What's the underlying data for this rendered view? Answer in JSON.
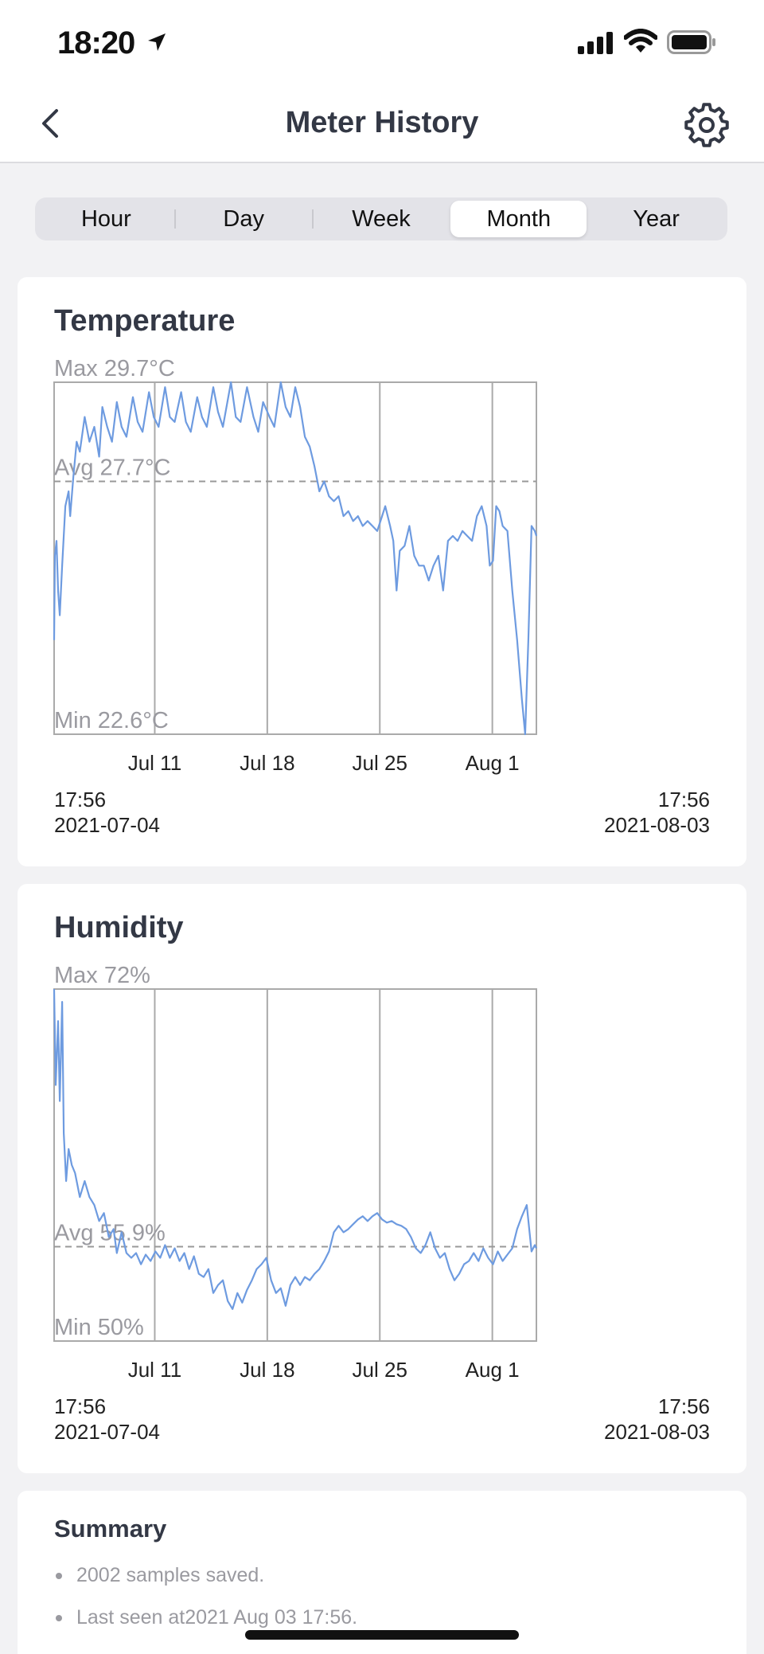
{
  "status_bar": {
    "time": "18:20"
  },
  "nav": {
    "title": "Meter History"
  },
  "tabs": [
    {
      "label": "Hour",
      "active": false
    },
    {
      "label": "Day",
      "active": false
    },
    {
      "label": "Week",
      "active": false
    },
    {
      "label": "Month",
      "active": true
    },
    {
      "label": "Year",
      "active": false
    }
  ],
  "temperature": {
    "title": "Temperature",
    "max_label": "Max 29.7°C",
    "avg_label": "Avg 27.7°C",
    "min_label": "Min 22.6°C",
    "start_time": "17:56",
    "start_date": "2021-07-04",
    "end_time": "17:56",
    "end_date": "2021-08-03"
  },
  "humidity": {
    "title": "Humidity",
    "max_label": "Max 72%",
    "avg_label": "Avg 55.9%",
    "min_label": "Min 50%",
    "start_time": "17:56",
    "start_date": "2021-07-04",
    "end_time": "17:56",
    "end_date": "2021-08-03"
  },
  "summary": {
    "title": "Summary",
    "items": [
      "2002 samples saved.",
      "Last seen at2021 Aug 03 17:56."
    ]
  },
  "chart_data": [
    {
      "type": "line",
      "title": "Temperature",
      "unit": "°C",
      "x_tick_labels": [
        "Jul 11",
        "Jul 18",
        "Jul 25",
        "Aug 1"
      ],
      "x_ticks_days": [
        6.26,
        13.26,
        20.26,
        27.26
      ],
      "xlim_days": [
        0,
        30
      ],
      "ylim": [
        22.6,
        29.7
      ],
      "avg": 27.7,
      "grid": "vertical at day ticks",
      "color": "#6e9be0",
      "series": [
        {
          "points": [
            [
              0,
              24.5
            ],
            [
              0.05,
              26.2
            ],
            [
              0.15,
              26.5
            ],
            [
              0.25,
              25.5
            ],
            [
              0.35,
              25.0
            ],
            [
              0.5,
              26.0
            ],
            [
              0.7,
              27.2
            ],
            [
              0.9,
              27.5
            ],
            [
              1.0,
              27.0
            ],
            [
              1.2,
              27.8
            ],
            [
              1.4,
              28.5
            ],
            [
              1.6,
              28.3
            ],
            [
              1.9,
              29.0
            ],
            [
              2.2,
              28.5
            ],
            [
              2.5,
              28.8
            ],
            [
              2.8,
              28.2
            ],
            [
              3.0,
              29.2
            ],
            [
              3.3,
              28.8
            ],
            [
              3.6,
              28.5
            ],
            [
              3.9,
              29.3
            ],
            [
              4.2,
              28.8
            ],
            [
              4.5,
              28.6
            ],
            [
              4.9,
              29.4
            ],
            [
              5.2,
              28.9
            ],
            [
              5.5,
              28.7
            ],
            [
              5.9,
              29.5
            ],
            [
              6.2,
              29.0
            ],
            [
              6.5,
              28.8
            ],
            [
              6.9,
              29.6
            ],
            [
              7.2,
              29.0
            ],
            [
              7.5,
              28.9
            ],
            [
              7.9,
              29.5
            ],
            [
              8.2,
              28.9
            ],
            [
              8.5,
              28.7
            ],
            [
              8.9,
              29.4
            ],
            [
              9.2,
              29.0
            ],
            [
              9.5,
              28.8
            ],
            [
              9.9,
              29.6
            ],
            [
              10.2,
              29.1
            ],
            [
              10.5,
              28.8
            ],
            [
              11.0,
              29.7
            ],
            [
              11.3,
              29.0
            ],
            [
              11.6,
              28.9
            ],
            [
              12.0,
              29.6
            ],
            [
              12.4,
              29.0
            ],
            [
              12.7,
              28.7
            ],
            [
              13.0,
              29.3
            ],
            [
              13.4,
              29.0
            ],
            [
              13.7,
              28.8
            ],
            [
              14.1,
              29.7
            ],
            [
              14.4,
              29.2
            ],
            [
              14.7,
              29.0
            ],
            [
              15.0,
              29.6
            ],
            [
              15.3,
              29.2
            ],
            [
              15.6,
              28.6
            ],
            [
              15.9,
              28.4
            ],
            [
              16.2,
              28.0
            ],
            [
              16.5,
              27.5
            ],
            [
              16.8,
              27.7
            ],
            [
              17.1,
              27.4
            ],
            [
              17.4,
              27.3
            ],
            [
              17.7,
              27.4
            ],
            [
              18.0,
              27.0
            ],
            [
              18.3,
              27.1
            ],
            [
              18.6,
              26.9
            ],
            [
              18.9,
              27.0
            ],
            [
              19.2,
              26.8
            ],
            [
              19.5,
              26.9
            ],
            [
              19.8,
              26.8
            ],
            [
              20.1,
              26.7
            ],
            [
              20.4,
              27.0
            ],
            [
              20.6,
              27.2
            ],
            [
              20.9,
              26.8
            ],
            [
              21.1,
              26.5
            ],
            [
              21.3,
              25.5
            ],
            [
              21.5,
              26.3
            ],
            [
              21.8,
              26.4
            ],
            [
              22.1,
              26.8
            ],
            [
              22.4,
              26.2
            ],
            [
              22.7,
              26.0
            ],
            [
              23.0,
              26.0
            ],
            [
              23.3,
              25.7
            ],
            [
              23.6,
              26.0
            ],
            [
              23.9,
              26.2
            ],
            [
              24.2,
              25.5
            ],
            [
              24.5,
              26.5
            ],
            [
              24.8,
              26.6
            ],
            [
              25.1,
              26.5
            ],
            [
              25.4,
              26.7
            ],
            [
              25.7,
              26.6
            ],
            [
              26.0,
              26.5
            ],
            [
              26.3,
              27.0
            ],
            [
              26.6,
              27.2
            ],
            [
              26.9,
              26.8
            ],
            [
              27.1,
              26.0
            ],
            [
              27.3,
              26.1
            ],
            [
              27.5,
              27.2
            ],
            [
              27.7,
              27.1
            ],
            [
              27.9,
              26.8
            ],
            [
              28.2,
              26.7
            ],
            [
              28.5,
              25.5
            ],
            [
              28.8,
              24.5
            ],
            [
              29.1,
              23.3
            ],
            [
              29.3,
              22.6
            ],
            [
              29.5,
              24.5
            ],
            [
              29.7,
              26.8
            ],
            [
              29.9,
              26.7
            ],
            [
              30.0,
              26.6
            ]
          ]
        }
      ]
    },
    {
      "type": "line",
      "title": "Humidity",
      "unit": "%",
      "x_tick_labels": [
        "Jul 11",
        "Jul 18",
        "Jul 25",
        "Aug 1"
      ],
      "x_ticks_days": [
        6.26,
        13.26,
        20.26,
        27.26
      ],
      "xlim_days": [
        0,
        30
      ],
      "ylim": [
        50,
        72
      ],
      "avg": 55.9,
      "grid": "vertical at day ticks",
      "color": "#6e9be0",
      "series": [
        {
          "points": [
            [
              0,
              72
            ],
            [
              0.1,
              66
            ],
            [
              0.25,
              70
            ],
            [
              0.35,
              65
            ],
            [
              0.5,
              71.2
            ],
            [
              0.6,
              63
            ],
            [
              0.75,
              60
            ],
            [
              0.9,
              62
            ],
            [
              1.1,
              61
            ],
            [
              1.3,
              60.5
            ],
            [
              1.6,
              59
            ],
            [
              1.9,
              60
            ],
            [
              2.2,
              59
            ],
            [
              2.5,
              58.5
            ],
            [
              2.8,
              57.5
            ],
            [
              3.1,
              58
            ],
            [
              3.4,
              56.5
            ],
            [
              3.7,
              57
            ],
            [
              3.9,
              55.5
            ],
            [
              4.2,
              56.8
            ],
            [
              4.5,
              55.5
            ],
            [
              4.8,
              55.2
            ],
            [
              5.1,
              55.5
            ],
            [
              5.4,
              54.8
            ],
            [
              5.7,
              55.4
            ],
            [
              6.0,
              55.0
            ],
            [
              6.3,
              55.6
            ],
            [
              6.6,
              55.2
            ],
            [
              6.9,
              56
            ],
            [
              7.2,
              55.2
            ],
            [
              7.5,
              55.8
            ],
            [
              7.8,
              55.0
            ],
            [
              8.1,
              55.5
            ],
            [
              8.4,
              54.5
            ],
            [
              8.7,
              55.3
            ],
            [
              9.0,
              54.2
            ],
            [
              9.3,
              54.0
            ],
            [
              9.6,
              54.5
            ],
            [
              9.9,
              53.0
            ],
            [
              10.2,
              53.5
            ],
            [
              10.5,
              53.8
            ],
            [
              10.8,
              52.5
            ],
            [
              11.1,
              52.0
            ],
            [
              11.4,
              53.0
            ],
            [
              11.7,
              52.4
            ],
            [
              12.0,
              53.2
            ],
            [
              12.3,
              53.8
            ],
            [
              12.6,
              54.5
            ],
            [
              12.9,
              54.8
            ],
            [
              13.2,
              55.2
            ],
            [
              13.5,
              53.8
            ],
            [
              13.8,
              53.0
            ],
            [
              14.1,
              53.3
            ],
            [
              14.4,
              52.2
            ],
            [
              14.7,
              53.5
            ],
            [
              15.0,
              54.0
            ],
            [
              15.3,
              53.5
            ],
            [
              15.6,
              54.0
            ],
            [
              15.9,
              53.8
            ],
            [
              16.2,
              54.2
            ],
            [
              16.5,
              54.5
            ],
            [
              16.8,
              55.0
            ],
            [
              17.1,
              55.6
            ],
            [
              17.4,
              56.8
            ],
            [
              17.7,
              57.2
            ],
            [
              18.0,
              56.8
            ],
            [
              18.3,
              57.0
            ],
            [
              18.6,
              57.3
            ],
            [
              18.9,
              57.6
            ],
            [
              19.2,
              57.8
            ],
            [
              19.5,
              57.5
            ],
            [
              19.8,
              57.8
            ],
            [
              20.1,
              58.0
            ],
            [
              20.4,
              57.6
            ],
            [
              20.7,
              57.4
            ],
            [
              21.0,
              57.5
            ],
            [
              21.3,
              57.3
            ],
            [
              21.6,
              57.2
            ],
            [
              21.9,
              57.0
            ],
            [
              22.2,
              56.5
            ],
            [
              22.5,
              55.8
            ],
            [
              22.8,
              55.5
            ],
            [
              23.1,
              56.0
            ],
            [
              23.4,
              56.8
            ],
            [
              23.7,
              55.8
            ],
            [
              24.0,
              55.2
            ],
            [
              24.3,
              55.5
            ],
            [
              24.6,
              54.5
            ],
            [
              24.9,
              53.8
            ],
            [
              25.2,
              54.2
            ],
            [
              25.5,
              54.8
            ],
            [
              25.8,
              55.0
            ],
            [
              26.1,
              55.5
            ],
            [
              26.4,
              55.0
            ],
            [
              26.7,
              55.8
            ],
            [
              27.0,
              55.2
            ],
            [
              27.3,
              54.8
            ],
            [
              27.6,
              55.6
            ],
            [
              27.9,
              55.0
            ],
            [
              28.2,
              55.4
            ],
            [
              28.5,
              55.8
            ],
            [
              28.8,
              57.0
            ],
            [
              29.1,
              57.8
            ],
            [
              29.4,
              58.5
            ],
            [
              29.7,
              55.6
            ],
            [
              29.9,
              56.0
            ],
            [
              30.0,
              55.8
            ]
          ]
        }
      ]
    }
  ]
}
